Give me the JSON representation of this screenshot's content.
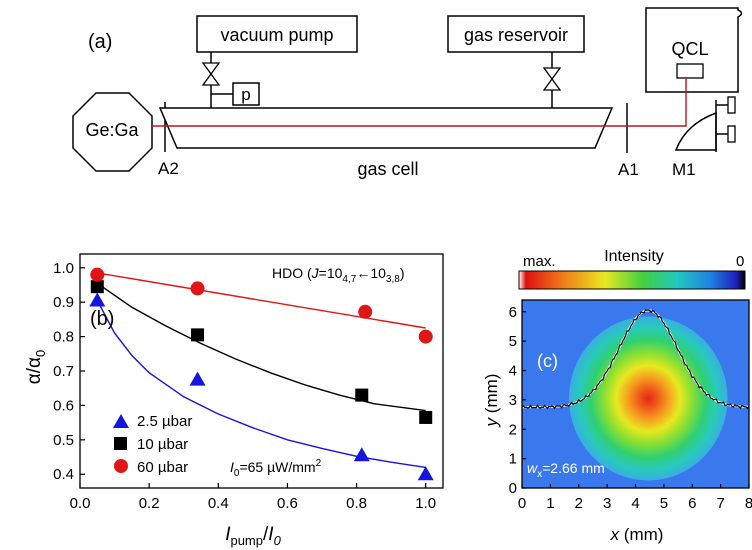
{
  "setup": {
    "panel_label": "(a)",
    "boxes": {
      "vacuum_pump": "vacuum pump",
      "gas_reservoir": "gas reservoir",
      "qcl": "QCL",
      "pressure": "p",
      "detector": "Ge:Ga"
    },
    "labels": {
      "a2": "A2",
      "gas_cell": "gas cell",
      "a1": "A1",
      "m1": "M1"
    }
  },
  "chart_data": [
    {
      "type": "scatter",
      "panel_label": "(b)",
      "annotation": "HDO (J=10",
      "annotation_parts": {
        "prefix": "HDO (",
        "j": "J",
        "eq": "=10",
        "sub1": "4,7",
        "arrow": "←10",
        "sub2": "3,8",
        "suffix": ")"
      },
      "intensity_note": {
        "i": "I",
        "sub": "0",
        "rest": "=65 µW/mm",
        "sup": "2"
      },
      "ylabel": {
        "a": "α/α",
        "sub": "0"
      },
      "xlabel": {
        "i": "I",
        "sub": "pump",
        "slash": "/",
        "i2": "I",
        "sub2": "0"
      },
      "xlim": [
        0.0,
        1.05
      ],
      "ylim": [
        0.36,
        1.04
      ],
      "xticks": [
        "0.0",
        "0.2",
        "0.4",
        "0.6",
        "0.8",
        "1.0"
      ],
      "yticks": [
        "0.4",
        "0.5",
        "0.6",
        "0.7",
        "0.8",
        "0.9",
        "1.0"
      ],
      "xtick_values": [
        0.0,
        0.2,
        0.4,
        0.6,
        0.8,
        1.0
      ],
      "ytick_values": [
        0.4,
        0.5,
        0.6,
        0.7,
        0.8,
        0.9,
        1.0
      ],
      "series": [
        {
          "name": "2.5 µbar",
          "marker": "triangle",
          "color": "#1515e0",
          "x": [
            0.05,
            0.34,
            0.815,
            1.0
          ],
          "y": [
            0.905,
            0.675,
            0.455,
            0.4
          ],
          "fit": [
            [
              0.05,
              0.905
            ],
            [
              0.1,
              0.81
            ],
            [
              0.15,
              0.745
            ],
            [
              0.2,
              0.695
            ],
            [
              0.3,
              0.625
            ],
            [
              0.4,
              0.575
            ],
            [
              0.5,
              0.535
            ],
            [
              0.6,
              0.5
            ],
            [
              0.7,
              0.475
            ],
            [
              0.8,
              0.452
            ],
            [
              0.9,
              0.435
            ],
            [
              1.0,
              0.42
            ]
          ]
        },
        {
          "name": "10 µbar",
          "marker": "square",
          "color": "#000000",
          "x": [
            0.05,
            0.34,
            0.815,
            1.0
          ],
          "y": [
            0.945,
            0.805,
            0.63,
            0.565
          ],
          "fit": [
            [
              0.05,
              0.955
            ],
            [
              0.15,
              0.885
            ],
            [
              0.25,
              0.83
            ],
            [
              0.35,
              0.78
            ],
            [
              0.45,
              0.735
            ],
            [
              0.55,
              0.695
            ],
            [
              0.65,
              0.66
            ],
            [
              0.75,
              0.63
            ],
            [
              0.85,
              0.605
            ],
            [
              1.0,
              0.585
            ]
          ]
        },
        {
          "name": "60 µbar",
          "marker": "circle",
          "color": "#e01515",
          "x": [
            0.05,
            0.34,
            0.825,
            1.0
          ],
          "y": [
            0.98,
            0.94,
            0.872,
            0.8
          ],
          "fit": [
            [
              0.05,
              0.985
            ],
            [
              1.0,
              0.825
            ]
          ]
        }
      ]
    },
    {
      "type": "heatmap",
      "panel_label": "(c)",
      "colorbar": {
        "title": "Intensity",
        "max_label": "max.",
        "min_label": "0"
      },
      "annotation": {
        "w": "w",
        "sub": "x",
        "rest": "=2.66 mm"
      },
      "xlabel": {
        "var": "x",
        "unit": " (mm)"
      },
      "ylabel": {
        "var": "y",
        "unit": " (mm)"
      },
      "xlim": [
        0,
        8
      ],
      "ylim": [
        0,
        6.4
      ],
      "xticks": [
        "0",
        "1",
        "2",
        "3",
        "4",
        "5",
        "6",
        "7",
        "8"
      ],
      "yticks": [
        "0",
        "1",
        "2",
        "3",
        "4",
        "5",
        "6"
      ],
      "xtick_values": [
        0,
        1,
        2,
        3,
        4,
        5,
        6,
        7,
        8
      ],
      "ytick_values": [
        0,
        1,
        2,
        3,
        4,
        5,
        6
      ],
      "beam_center": [
        4.45,
        3.05
      ],
      "beam_width_mm": 2.66,
      "profile_baseline_mm": 2.75,
      "profile_peak_mm": 6.05
    }
  ]
}
